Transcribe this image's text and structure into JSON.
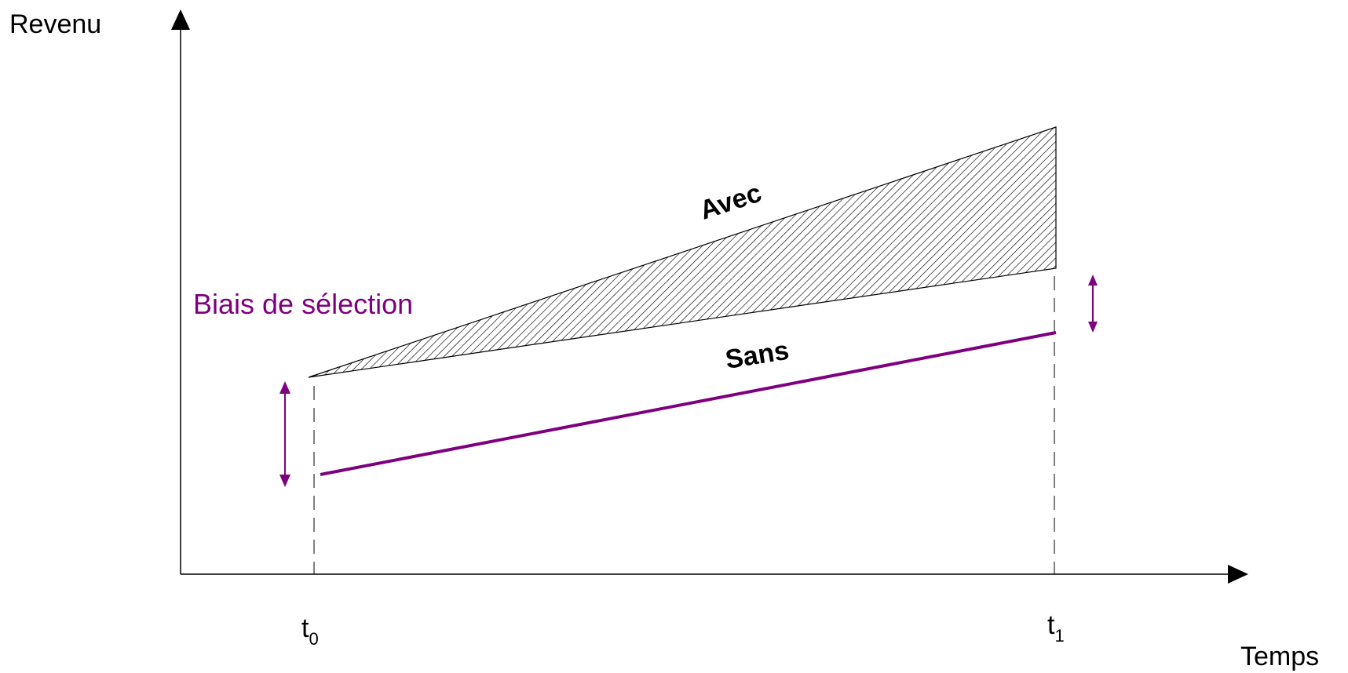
{
  "axes": {
    "y_label": "Revenu",
    "x_label": "Temps"
  },
  "ticks": {
    "t0": {
      "base": "t",
      "sub": "0"
    },
    "t1": {
      "base": "t",
      "sub": "1"
    }
  },
  "lines": {
    "avec_label": "Avec",
    "sans_label": "Sans"
  },
  "annotation": {
    "selection_bias": "Biais de sélection"
  },
  "colors": {
    "axis": "#000000",
    "sans_line": "#7f007f",
    "bias_text": "#7f007f",
    "hatch": "#000000"
  }
}
